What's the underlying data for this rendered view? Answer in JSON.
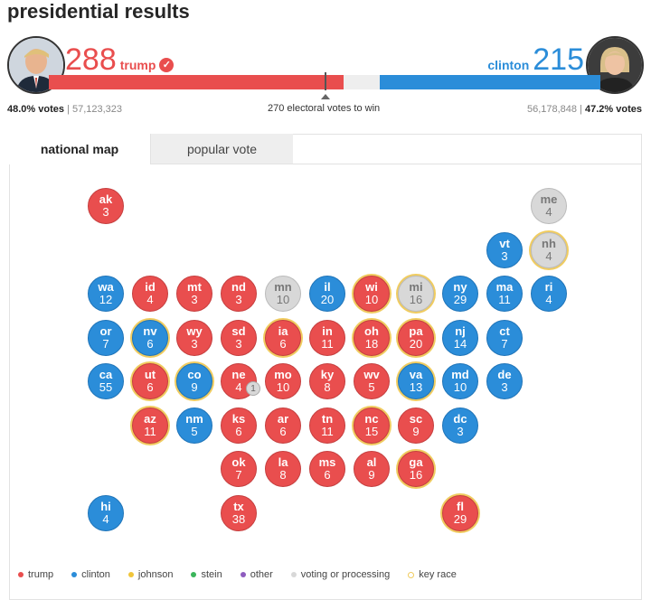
{
  "title": "presidential results",
  "trump": {
    "votes": "288",
    "name": "trump",
    "popular_pct": "48.0% votes",
    "popular_count": "57,123,323",
    "fill_fraction": 0.535
  },
  "clinton": {
    "votes": "215",
    "name": "clinton",
    "popular_pct": "47.2% votes",
    "popular_count": "56,178,848",
    "fill_fraction": 0.4
  },
  "threshold_label": "270 electoral votes to win",
  "tabs": [
    {
      "label": "national map",
      "active": true
    },
    {
      "label": "popular vote",
      "active": false
    }
  ],
  "colors": {
    "trump": "#e94e4e",
    "clinton": "#2b8dd9",
    "johnson": "#f0c53a",
    "stein": "#3bb55b",
    "other": "#8e5cbf",
    "voting": "#d8d8d8",
    "key_race": "#f0cc60"
  },
  "states": [
    {
      "ab": "ak",
      "ev": "3",
      "party": "r",
      "key": false,
      "col": 0,
      "row": 0
    },
    {
      "ab": "me",
      "ev": "4",
      "party": "g",
      "key": false,
      "col": 10,
      "row": 0
    },
    {
      "ab": "vt",
      "ev": "3",
      "party": "b",
      "key": false,
      "col": 9,
      "row": 1
    },
    {
      "ab": "nh",
      "ev": "4",
      "party": "g",
      "key": true,
      "col": 10,
      "row": 1
    },
    {
      "ab": "wa",
      "ev": "12",
      "party": "b",
      "key": false,
      "col": 0,
      "row": 2
    },
    {
      "ab": "id",
      "ev": "4",
      "party": "r",
      "key": false,
      "col": 1,
      "row": 2
    },
    {
      "ab": "mt",
      "ev": "3",
      "party": "r",
      "key": false,
      "col": 2,
      "row": 2
    },
    {
      "ab": "nd",
      "ev": "3",
      "party": "r",
      "key": false,
      "col": 3,
      "row": 2
    },
    {
      "ab": "mn",
      "ev": "10",
      "party": "g",
      "key": false,
      "col": 4,
      "row": 2
    },
    {
      "ab": "il",
      "ev": "20",
      "party": "b",
      "key": false,
      "col": 5,
      "row": 2
    },
    {
      "ab": "wi",
      "ev": "10",
      "party": "r",
      "key": true,
      "col": 6,
      "row": 2
    },
    {
      "ab": "mi",
      "ev": "16",
      "party": "g",
      "key": true,
      "col": 7,
      "row": 2
    },
    {
      "ab": "ny",
      "ev": "29",
      "party": "b",
      "key": false,
      "col": 8,
      "row": 2
    },
    {
      "ab": "ma",
      "ev": "11",
      "party": "b",
      "key": false,
      "col": 9,
      "row": 2
    },
    {
      "ab": "ri",
      "ev": "4",
      "party": "b",
      "key": false,
      "col": 10,
      "row": 2
    },
    {
      "ab": "or",
      "ev": "7",
      "party": "b",
      "key": false,
      "col": 0,
      "row": 3
    },
    {
      "ab": "nv",
      "ev": "6",
      "party": "b",
      "key": true,
      "col": 1,
      "row": 3
    },
    {
      "ab": "wy",
      "ev": "3",
      "party": "r",
      "key": false,
      "col": 2,
      "row": 3
    },
    {
      "ab": "sd",
      "ev": "3",
      "party": "r",
      "key": false,
      "col": 3,
      "row": 3
    },
    {
      "ab": "ia",
      "ev": "6",
      "party": "r",
      "key": true,
      "col": 4,
      "row": 3
    },
    {
      "ab": "in",
      "ev": "11",
      "party": "r",
      "key": false,
      "col": 5,
      "row": 3
    },
    {
      "ab": "oh",
      "ev": "18",
      "party": "r",
      "key": true,
      "col": 6,
      "row": 3
    },
    {
      "ab": "pa",
      "ev": "20",
      "party": "r",
      "key": true,
      "col": 7,
      "row": 3
    },
    {
      "ab": "nj",
      "ev": "14",
      "party": "b",
      "key": false,
      "col": 8,
      "row": 3
    },
    {
      "ab": "ct",
      "ev": "7",
      "party": "b",
      "key": false,
      "col": 9,
      "row": 3
    },
    {
      "ab": "ca",
      "ev": "55",
      "party": "b",
      "key": false,
      "col": 0,
      "row": 4
    },
    {
      "ab": "ut",
      "ev": "6",
      "party": "r",
      "key": true,
      "col": 1,
      "row": 4
    },
    {
      "ab": "co",
      "ev": "9",
      "party": "b",
      "key": true,
      "col": 2,
      "row": 4
    },
    {
      "ab": "ne",
      "ev": "4",
      "party": "r",
      "key": false,
      "col": 3,
      "row": 4,
      "badge": "1"
    },
    {
      "ab": "mo",
      "ev": "10",
      "party": "r",
      "key": false,
      "col": 4,
      "row": 4
    },
    {
      "ab": "ky",
      "ev": "8",
      "party": "r",
      "key": false,
      "col": 5,
      "row": 4
    },
    {
      "ab": "wv",
      "ev": "5",
      "party": "r",
      "key": false,
      "col": 6,
      "row": 4
    },
    {
      "ab": "va",
      "ev": "13",
      "party": "b",
      "key": true,
      "col": 7,
      "row": 4
    },
    {
      "ab": "md",
      "ev": "10",
      "party": "b",
      "key": false,
      "col": 8,
      "row": 4
    },
    {
      "ab": "de",
      "ev": "3",
      "party": "b",
      "key": false,
      "col": 9,
      "row": 4
    },
    {
      "ab": "az",
      "ev": "11",
      "party": "r",
      "key": true,
      "col": 1,
      "row": 5
    },
    {
      "ab": "nm",
      "ev": "5",
      "party": "b",
      "key": false,
      "col": 2,
      "row": 5
    },
    {
      "ab": "ks",
      "ev": "6",
      "party": "r",
      "key": false,
      "col": 3,
      "row": 5
    },
    {
      "ab": "ar",
      "ev": "6",
      "party": "r",
      "key": false,
      "col": 4,
      "row": 5
    },
    {
      "ab": "tn",
      "ev": "11",
      "party": "r",
      "key": false,
      "col": 5,
      "row": 5
    },
    {
      "ab": "nc",
      "ev": "15",
      "party": "r",
      "key": true,
      "col": 6,
      "row": 5
    },
    {
      "ab": "sc",
      "ev": "9",
      "party": "r",
      "key": false,
      "col": 7,
      "row": 5
    },
    {
      "ab": "dc",
      "ev": "3",
      "party": "b",
      "key": false,
      "col": 8,
      "row": 5
    },
    {
      "ab": "ok",
      "ev": "7",
      "party": "r",
      "key": false,
      "col": 3,
      "row": 6
    },
    {
      "ab": "la",
      "ev": "8",
      "party": "r",
      "key": false,
      "col": 4,
      "row": 6
    },
    {
      "ab": "ms",
      "ev": "6",
      "party": "r",
      "key": false,
      "col": 5,
      "row": 6
    },
    {
      "ab": "al",
      "ev": "9",
      "party": "r",
      "key": false,
      "col": 6,
      "row": 6
    },
    {
      "ab": "ga",
      "ev": "16",
      "party": "r",
      "key": true,
      "col": 7,
      "row": 6
    },
    {
      "ab": "hi",
      "ev": "4",
      "party": "b",
      "key": false,
      "col": 0,
      "row": 7
    },
    {
      "ab": "tx",
      "ev": "38",
      "party": "r",
      "key": false,
      "col": 3,
      "row": 7
    },
    {
      "ab": "fl",
      "ev": "29",
      "party": "r",
      "key": true,
      "col": 8,
      "row": 7
    }
  ],
  "legend": [
    {
      "label": "trump",
      "color": "#e94e4e",
      "type": "dot"
    },
    {
      "label": "clinton",
      "color": "#2b8dd9",
      "type": "dot"
    },
    {
      "label": "johnson",
      "color": "#f0c53a",
      "type": "dot"
    },
    {
      "label": "stein",
      "color": "#3bb55b",
      "type": "dot"
    },
    {
      "label": "other",
      "color": "#8e5cbf",
      "type": "dot"
    },
    {
      "label": "voting or processing",
      "color": "#d8d8d8",
      "type": "dot"
    },
    {
      "label": "key race",
      "color": "#f0cc60",
      "type": "ring"
    }
  ]
}
